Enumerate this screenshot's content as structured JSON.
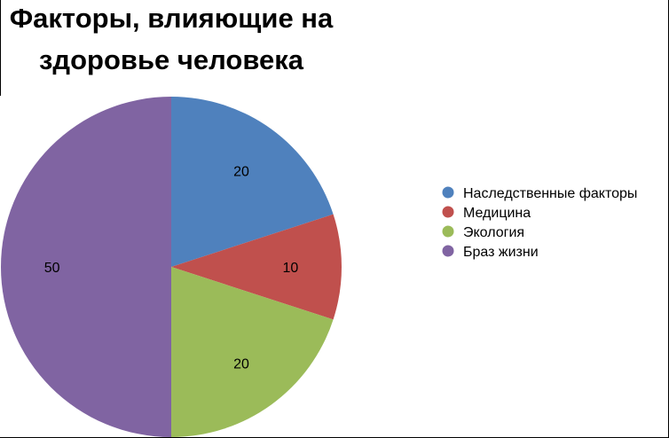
{
  "chart_data": {
    "type": "pie",
    "title": "Факторы, влияющие на здоровье человека",
    "title_lines": [
      "Факторы, влияющие на",
      "здоровье человека"
    ],
    "categories": [
      "Наследственные факторы",
      "Медицина",
      "Экология",
      "Браз жизни"
    ],
    "values": [
      20,
      10,
      20,
      50
    ],
    "data_labels": [
      "20",
      "10",
      "20",
      "50"
    ],
    "colors": [
      "#4F81BD",
      "#C0504D",
      "#9BBB59",
      "#8064A2"
    ],
    "legend_position": "right",
    "start_angle": "12 o'clock",
    "direction": "clockwise"
  }
}
